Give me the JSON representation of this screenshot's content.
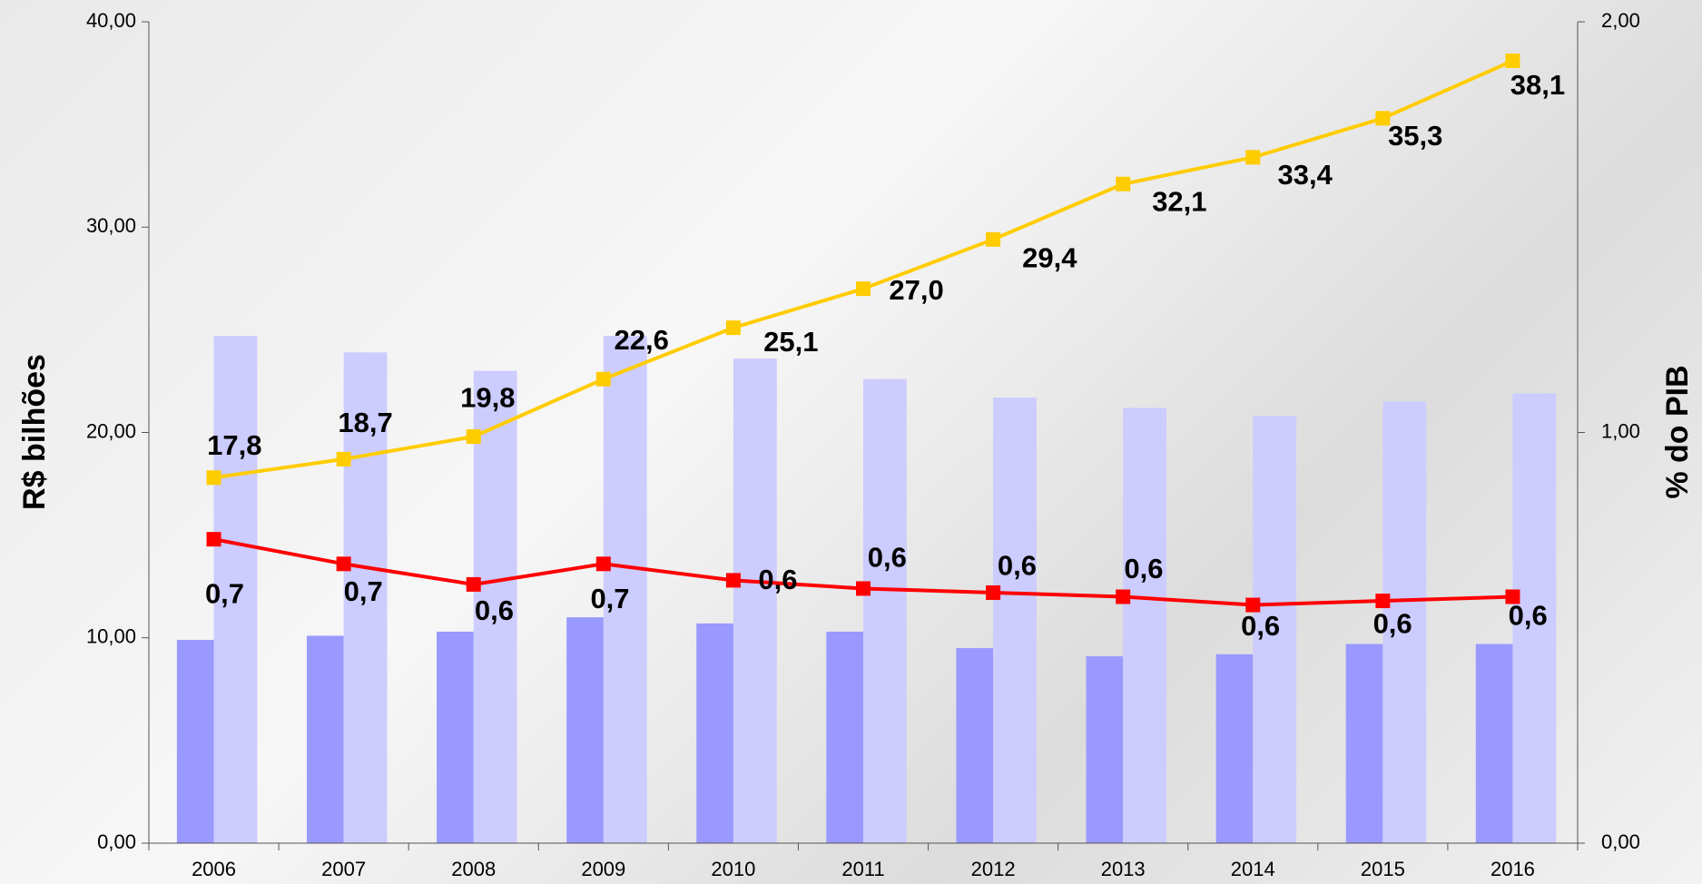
{
  "chart_data": {
    "type": "bar-line",
    "y_label": "R$ bilhões",
    "y2_label": "% do PIB",
    "categories": [
      "2006",
      "2007",
      "2008",
      "2009",
      "2010",
      "2011",
      "2012",
      "2013",
      "2014",
      "2015",
      "2016"
    ],
    "series": [
      {
        "type": "bar",
        "color": "#9999ff",
        "values": [
          9.9,
          10.1,
          10.3,
          11.0,
          10.7,
          10.3,
          9.5,
          9.1,
          9.2,
          9.7,
          9.7
        ]
      },
      {
        "type": "bar",
        "color": "#ccccff",
        "values": [
          24.7,
          23.9,
          23.0,
          24.7,
          23.6,
          22.6,
          21.7,
          21.2,
          20.8,
          21.5,
          21.9
        ]
      },
      {
        "type": "line",
        "color": "#ffcc00",
        "values": [
          17.8,
          18.7,
          19.8,
          22.6,
          25.1,
          27.0,
          29.4,
          32.1,
          33.4,
          35.3,
          38.1
        ],
        "value_labels": [
          "17,8",
          "18,7",
          "19,8",
          "22,6",
          "25,1",
          "27,0",
          "29,4",
          "32,1",
          "33,4",
          "35,3",
          "38,1"
        ]
      },
      {
        "type": "line",
        "axis": "y2",
        "color": "#ff0000",
        "values": [
          0.74,
          0.68,
          0.63,
          0.68,
          0.64,
          0.62,
          0.61,
          0.6,
          0.58,
          0.59,
          0.6
        ],
        "value_labels": [
          "0,7",
          "0,7",
          "0,6",
          "0,7",
          "0,6",
          "0,6",
          "0,6",
          "0,6",
          "0,6",
          "0,6",
          "0,6"
        ]
      }
    ],
    "ylim": [
      0,
      40
    ],
    "yticks": [
      {
        "value": 0,
        "label": "0,00"
      },
      {
        "value": 10,
        "label": "10,00"
      },
      {
        "value": 20,
        "label": "20,00"
      },
      {
        "value": 30,
        "label": "30,00"
      },
      {
        "value": 40,
        "label": "40,00"
      }
    ],
    "y2lim": [
      0,
      2
    ],
    "y2ticks": [
      {
        "value": 0,
        "label": "0,00"
      },
      {
        "value": 1,
        "label": "1,00"
      },
      {
        "value": 2,
        "label": "2,00"
      }
    ]
  }
}
